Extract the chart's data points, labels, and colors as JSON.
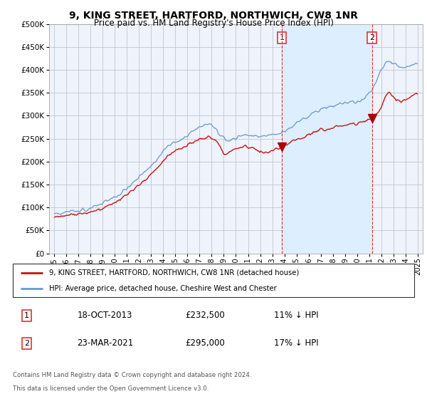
{
  "title": "9, KING STREET, HARTFORD, NORTHWICH, CW8 1NR",
  "subtitle": "Price paid vs. HM Land Registry's House Price Index (HPI)",
  "ylim": [
    0,
    500000
  ],
  "hpi_color": "#6699cc",
  "price_color": "#cc1111",
  "marker_color": "#aa0000",
  "vline_color": "#dd3333",
  "shade_color": "#ddeeff",
  "annotation1": {
    "x": 2013.79,
    "label": "1",
    "price": 232500,
    "date": "18-OCT-2013",
    "price_str": "£232,500",
    "pct": "11% ↓ HPI"
  },
  "annotation2": {
    "x": 2021.21,
    "label": "2",
    "price": 295000,
    "date": "23-MAR-2021",
    "price_str": "£295,000",
    "pct": "17% ↓ HPI"
  },
  "legend_line1": "9, KING STREET, HARTFORD, NORTHWICH, CW8 1NR (detached house)",
  "legend_line2": "HPI: Average price, detached house, Cheshire West and Chester",
  "footer1": "Contains HM Land Registry data © Crown copyright and database right 2024.",
  "footer2": "This data is licensed under the Open Government Licence v3.0.",
  "background_color": "#eef3fc"
}
